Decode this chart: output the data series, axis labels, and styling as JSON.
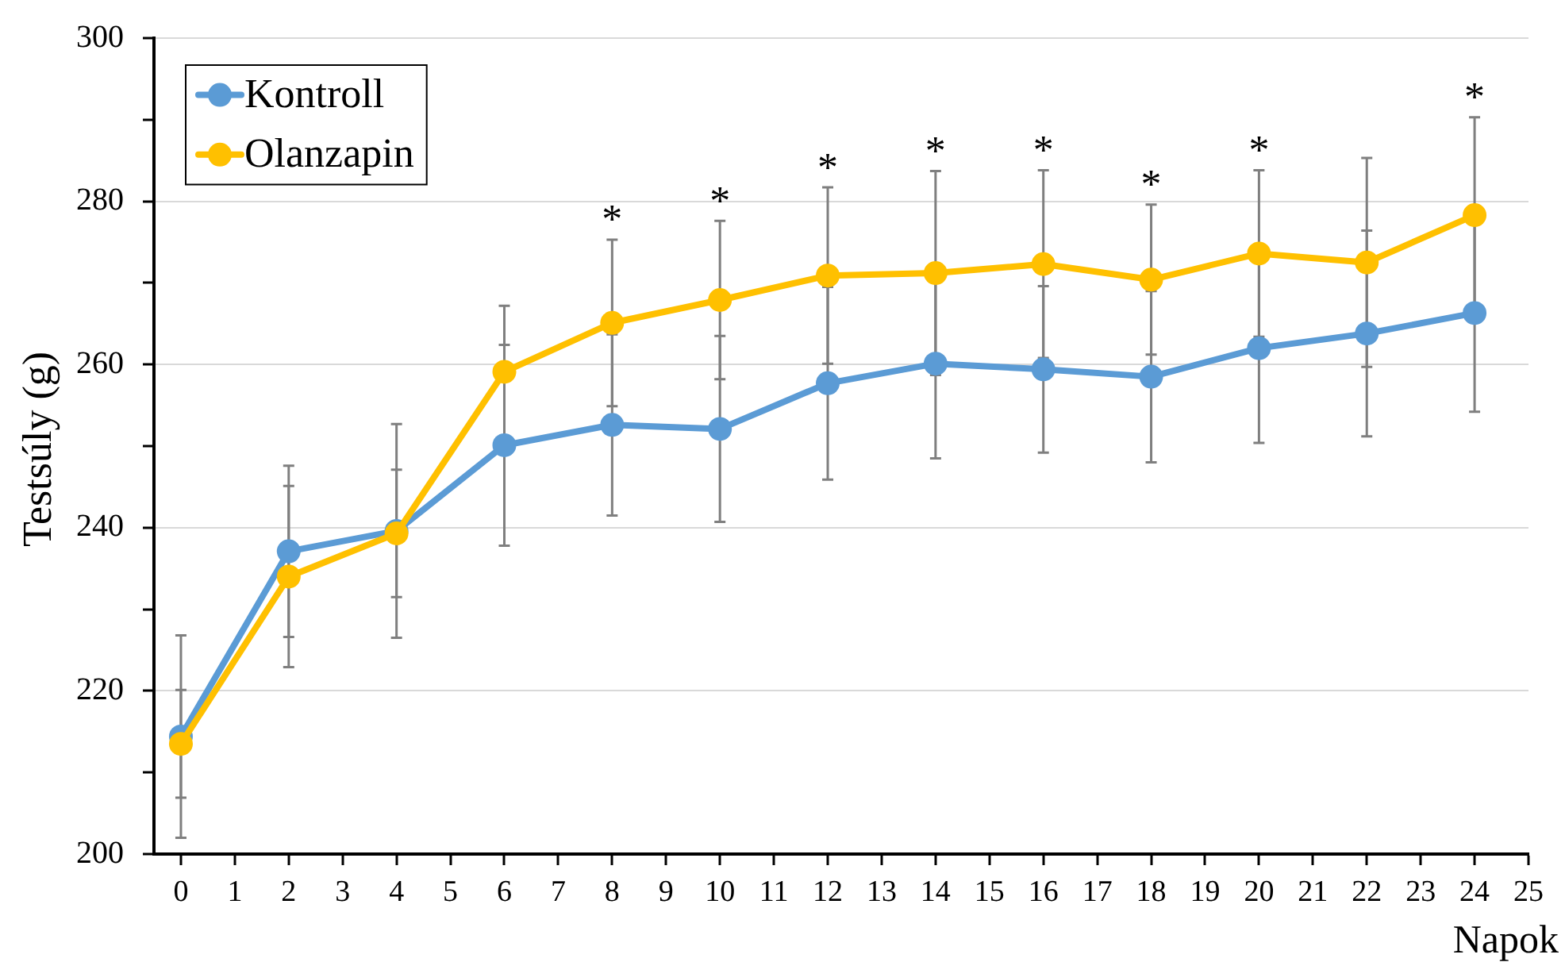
{
  "chart_data": {
    "type": "line",
    "xlabel": "Napok",
    "ylabel": "Testsúly (g)",
    "x": [
      0,
      2,
      4,
      6,
      8,
      10,
      12,
      14,
      16,
      18,
      20,
      22,
      24
    ],
    "series": [
      {
        "name": "Kontroll",
        "color": "#5b9bd5",
        "values": [
          214.4,
          237.1,
          239.6,
          250.1,
          252.6,
          252.1,
          257.7,
          260.1,
          259.4,
          258.5,
          262.0,
          263.8,
          266.3
        ],
        "errors": [
          12.4,
          10.5,
          13.1,
          12.3,
          11.1,
          11.4,
          11.8,
          11.6,
          10.2,
          10.5,
          11.6,
          12.6,
          12.1
        ]
      },
      {
        "name": "Olanzapin",
        "color": "#ffc000",
        "values": [
          213.5,
          234.0,
          239.3,
          259.1,
          265.1,
          267.9,
          270.9,
          271.2,
          272.3,
          270.4,
          273.6,
          272.5,
          278.3
        ],
        "errors": [
          6.6,
          11.1,
          7.8,
          8.1,
          10.2,
          9.7,
          10.8,
          12.5,
          11.5,
          9.2,
          10.2,
          12.8,
          12.0
        ]
      }
    ],
    "xlim": [
      -0.5,
      25
    ],
    "xticks": [
      0,
      1,
      2,
      3,
      4,
      5,
      6,
      7,
      8,
      9,
      10,
      11,
      12,
      13,
      14,
      15,
      16,
      17,
      18,
      19,
      20,
      21,
      22,
      23,
      24,
      25
    ],
    "ylim": [
      200,
      300
    ],
    "yticks": [
      200,
      {
        "value": 210,
        "label": null
      },
      220,
      {
        "value": 230,
        "label": null
      },
      240,
      {
        "value": 250,
        "label": null
      },
      260,
      {
        "value": 270,
        "label": null
      },
      280,
      {
        "value": 290,
        "label": null
      },
      300
    ],
    "grid": "y",
    "legend": "top left",
    "marker": "circle",
    "annotations": [
      {
        "text": "*",
        "x": 8,
        "y": 265.1
      },
      {
        "text": "*",
        "x": 10,
        "y": 267.9
      },
      {
        "text": "*",
        "x": 12,
        "y": 270.9
      },
      {
        "text": "*",
        "x": 14,
        "y": 271.2
      },
      {
        "text": "*",
        "x": 16,
        "y": 272.3
      },
      {
        "text": "*",
        "x": 18,
        "y": 270.4
      },
      {
        "text": "*",
        "x": 20,
        "y": 273.6
      },
      {
        "text": "*",
        "x": 24,
        "y": 278.3
      }
    ]
  }
}
